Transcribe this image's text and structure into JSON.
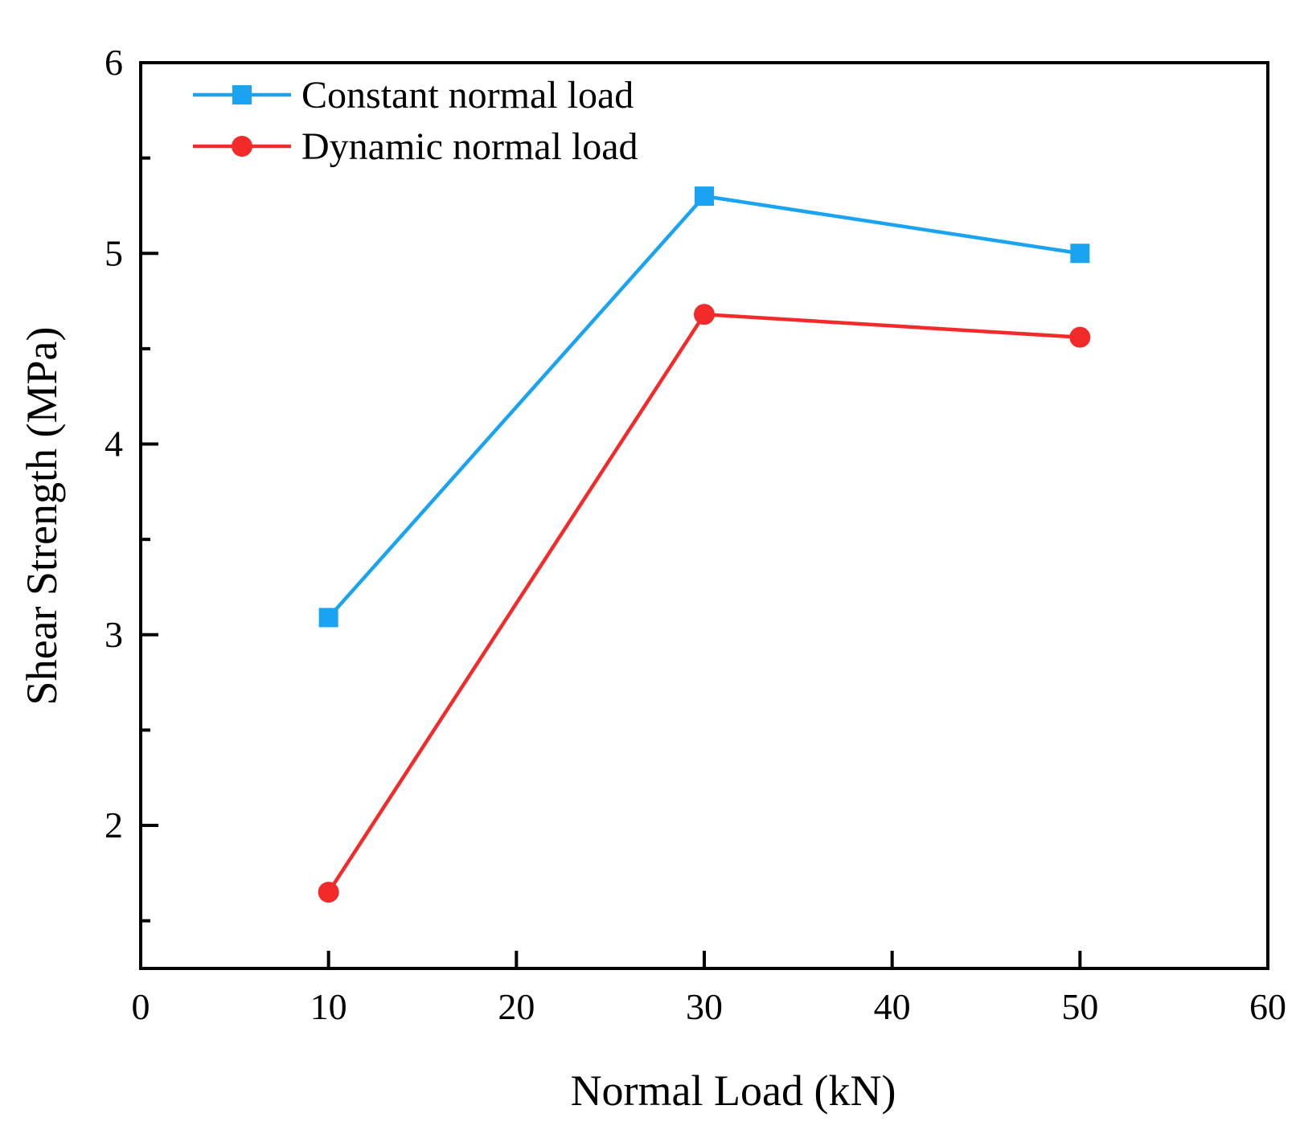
{
  "chart_data": {
    "type": "line",
    "title": "",
    "xlabel": "Normal Load (kN)",
    "ylabel": "Shear Strength (MPa)",
    "xlim": [
      0,
      60
    ],
    "ylim": [
      1.25,
      6
    ],
    "x_ticks": [
      "0",
      "10",
      "20",
      "30",
      "40",
      "50",
      "60"
    ],
    "x_tick_values": [
      0,
      10,
      20,
      30,
      40,
      50,
      60
    ],
    "y_ticks": [
      "2",
      "3",
      "4",
      "5",
      "6"
    ],
    "y_tick_values": [
      2,
      3,
      4,
      5,
      6
    ],
    "y_minor_tick_values": [
      1.5,
      2.5,
      3.5,
      4.5,
      5.5
    ],
    "grid": false,
    "legend_position": "top-left",
    "series": [
      {
        "name": "Constant normal load",
        "color": "#1aa3f0",
        "marker": "square",
        "x": [
          10,
          30,
          50
        ],
        "y": [
          3.09,
          5.3,
          5.0
        ]
      },
      {
        "name": "Dynamic normal load",
        "color": "#f22a2a",
        "marker": "circle",
        "x": [
          10,
          30,
          50
        ],
        "y": [
          1.65,
          4.68,
          4.56
        ]
      }
    ]
  }
}
